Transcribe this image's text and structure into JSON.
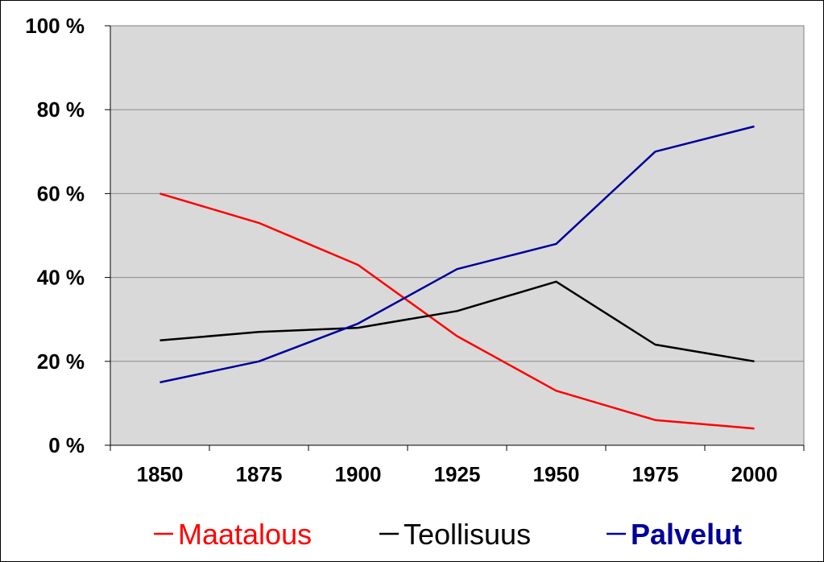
{
  "chart_data": {
    "type": "line",
    "x": [
      "1850",
      "1875",
      "1900",
      "1925",
      "1950",
      "1975",
      "2000"
    ],
    "y_ticks": [
      "0 %",
      "20 %",
      "40 %",
      "60 %",
      "80 %",
      "100 %"
    ],
    "ylim": [
      0,
      100
    ],
    "grid": true,
    "legend_position": "bottom",
    "plot_background": "#d9d9d9",
    "series": [
      {
        "name": "Maatalous",
        "color": "#ff0000",
        "bold": false,
        "values": [
          60,
          53,
          43,
          26,
          13,
          6,
          4
        ]
      },
      {
        "name": "Teollisuus",
        "color": "#000000",
        "bold": false,
        "values": [
          25,
          27,
          28,
          32,
          39,
          24,
          20
        ]
      },
      {
        "name": "Palvelut",
        "color": "#000099",
        "bold": true,
        "values": [
          15,
          20,
          29,
          42,
          48,
          70,
          76
        ]
      }
    ]
  }
}
